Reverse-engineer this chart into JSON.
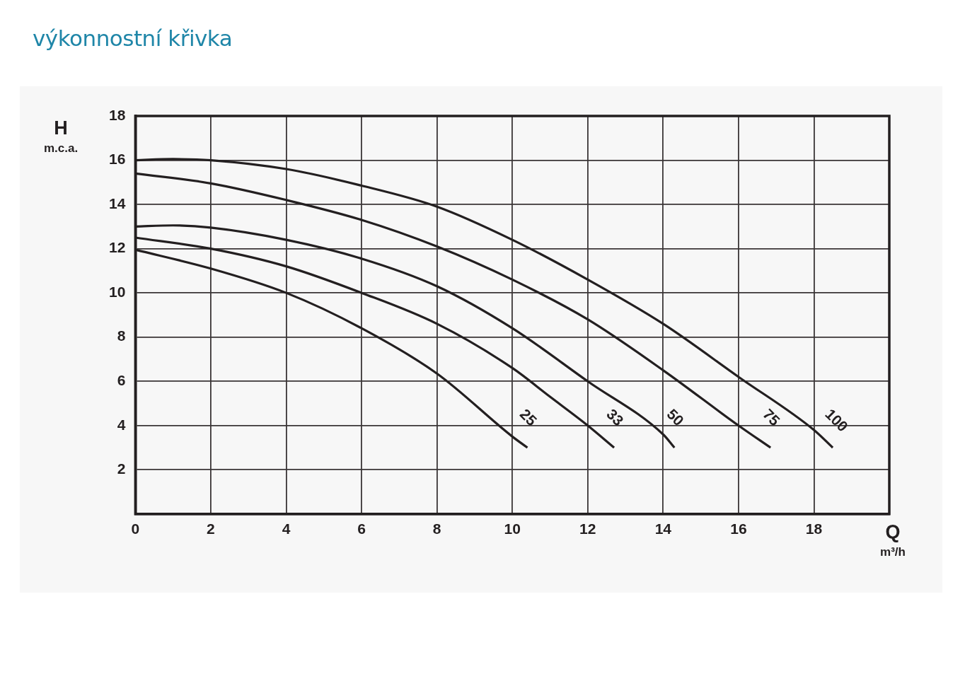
{
  "chart_data": {
    "type": "line",
    "title": "výkonnostní křivka",
    "xlabel": "Q\nm³/h",
    "ylabel": "H\nm.c.a.",
    "xlim": [
      0,
      20
    ],
    "xticks": [
      0,
      2,
      4,
      6,
      8,
      10,
      12,
      14,
      16,
      18
    ],
    "ylim": [
      0,
      18
    ],
    "yticks": [
      {
        "value": 0,
        "label": null
      },
      2,
      4,
      6,
      8,
      10,
      12,
      14,
      16,
      18
    ],
    "grid": true,
    "legend": false,
    "marker": "none",
    "line_style": "solid",
    "series": [
      {
        "name": "25",
        "color": "#231f20",
        "x": [
          0,
          2,
          4,
          6,
          8,
          10,
          10.4
        ],
        "values": [
          11.95,
          11.1,
          10,
          8.4,
          6.35,
          3.5,
          3
        ]
      },
      {
        "name": "33",
        "color": "#231f20",
        "x": [
          0,
          2,
          4,
          6,
          8,
          10,
          11,
          12,
          12.7
        ],
        "values": [
          12.5,
          12,
          11.2,
          10,
          8.6,
          6.6,
          5.3,
          4,
          3
        ]
      },
      {
        "name": "50",
        "color": "#231f20",
        "x": [
          0,
          1,
          2,
          4,
          6,
          8,
          10,
          12,
          14,
          14.3
        ],
        "values": [
          13,
          13.05,
          12.95,
          12.4,
          11.55,
          10.3,
          8.4,
          6,
          3.6,
          3
        ]
      },
      {
        "name": "75",
        "color": "#231f20",
        "x": [
          0,
          2,
          4,
          6,
          8,
          10,
          12,
          14,
          16,
          16.85
        ],
        "values": [
          15.4,
          14.95,
          14.2,
          13.3,
          12.1,
          10.6,
          8.8,
          6.5,
          4,
          3
        ]
      },
      {
        "name": "100",
        "color": "#231f20",
        "x": [
          0,
          1,
          2,
          4,
          6,
          8,
          10,
          12,
          14,
          16,
          18,
          18.5
        ],
        "values": [
          16,
          16.05,
          16,
          15.6,
          14.85,
          13.9,
          12.4,
          10.6,
          8.6,
          6.2,
          3.8,
          3
        ]
      }
    ]
  }
}
